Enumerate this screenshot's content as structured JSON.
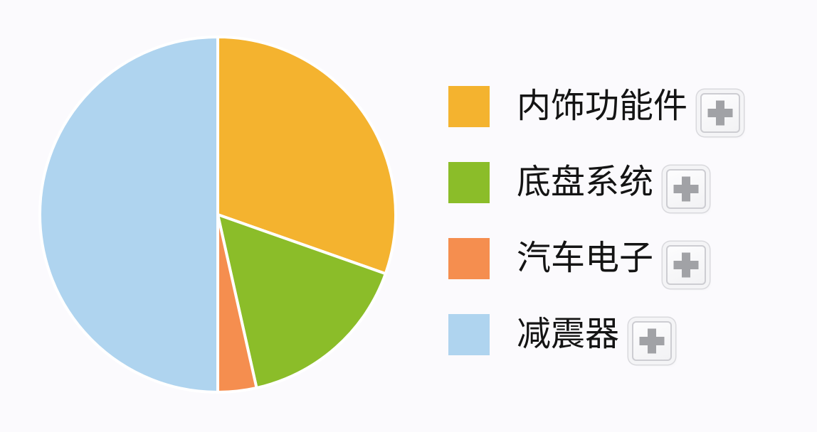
{
  "page": {
    "background": "#fbfafd"
  },
  "chart_data": {
    "type": "pie",
    "title": "",
    "categories": [
      "内饰功能件",
      "底盘系统",
      "汽车电子",
      "减震器"
    ],
    "values": [
      30.4,
      16.1,
      3.5,
      50.0
    ],
    "values_unit": "%",
    "colors": [
      "#f4b32f",
      "#8bbd29",
      "#f58e4f",
      "#afd4ef"
    ],
    "start_angle_deg": 0,
    "direction": "clockwise",
    "separator_color": "#ffffff",
    "separator_width": 4,
    "legend_position": "right"
  },
  "legend": {
    "plus_symbol": "+"
  }
}
